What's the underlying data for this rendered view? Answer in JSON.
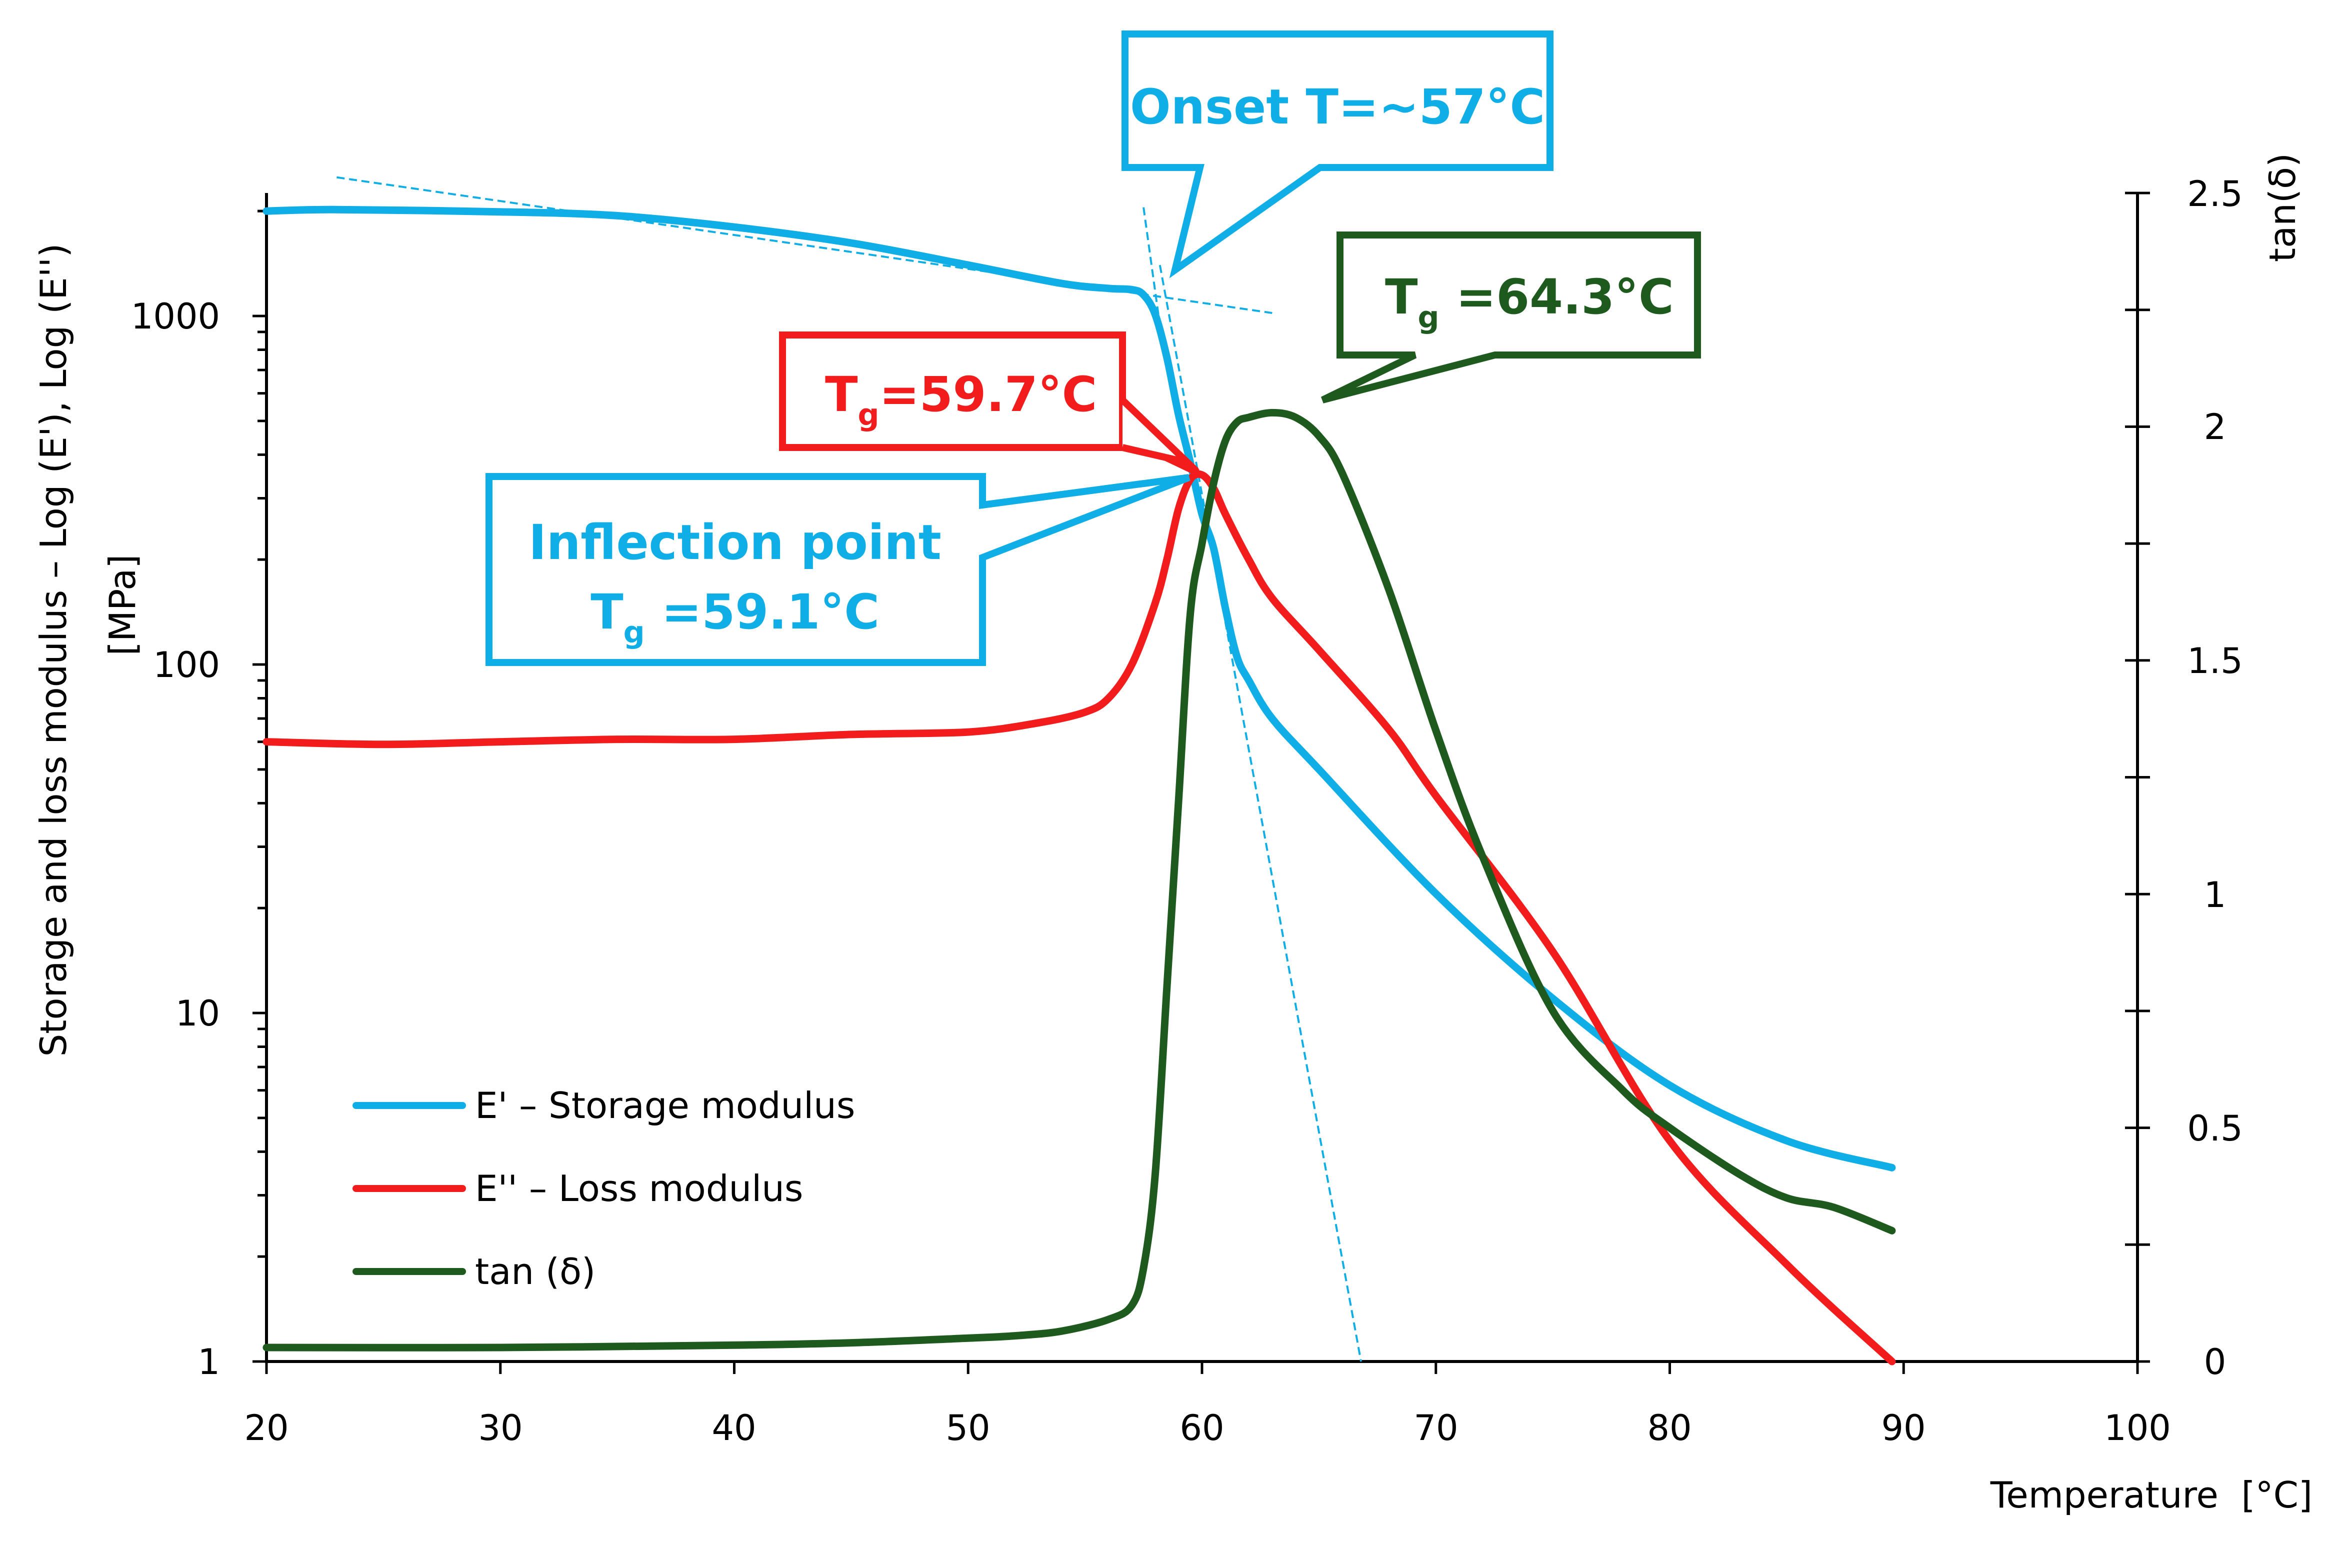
{
  "chart_data": {
    "type": "line",
    "title": "",
    "xlabel": "Temperature  [°C]",
    "ylabel_left_line1": "Storage and loss modulus – Log (E'), Log (E'')",
    "ylabel_left_line2": "[MPa]",
    "ylabel_right": "tan(δ)",
    "xlim": [
      20,
      100
    ],
    "ylim_left_log": [
      1,
      2500
    ],
    "ylim_right": [
      0,
      2.5
    ],
    "x_ticks": [
      "20",
      "30",
      "40",
      "50",
      "60",
      "70",
      "80",
      "90",
      "100"
    ],
    "y_left_ticks": [
      "1",
      "10",
      "100",
      "1000"
    ],
    "y_right_ticks": [
      "0",
      "0.5",
      "1",
      "1.5",
      "2",
      "2.5"
    ],
    "series": [
      {
        "name": "E' – Storage modulus",
        "axis": "left",
        "color": "#10aee6",
        "x": [
          20,
          23,
          30,
          35,
          40,
          45,
          50,
          54,
          56,
          57,
          57.5,
          58,
          58.5,
          59,
          59.5,
          60,
          60.5,
          61,
          61.5,
          62,
          63,
          65,
          70,
          75,
          80,
          85,
          89.5
        ],
        "y": [
          2000,
          2020,
          1990,
          1940,
          1800,
          1620,
          1400,
          1240,
          1200,
          1190,
          1150,
          1010,
          760,
          520,
          380,
          270,
          215,
          145,
          105,
          90,
          70,
          50,
          22,
          11,
          6.2,
          4.3,
          3.6
        ]
      },
      {
        "name": "E'' – Loss modulus",
        "axis": "left",
        "color": "#f21c1c",
        "x": [
          20,
          25,
          30,
          35,
          40,
          45,
          50,
          53,
          55,
          56,
          57,
          58,
          58.5,
          59,
          59.5,
          60,
          60.5,
          61,
          62,
          63,
          65,
          68,
          70,
          75,
          80,
          85,
          89.5
        ],
        "y": [
          60,
          59,
          60,
          61,
          61,
          63,
          64,
          68,
          73,
          80,
          100,
          150,
          200,
          280,
          340,
          350,
          320,
          270,
          200,
          155,
          110,
          65,
          42,
          15,
          4.3,
          1.9,
          1.0
        ]
      },
      {
        "name": "tan (δ)",
        "axis": "right",
        "color": "#1e5a1e",
        "x": [
          20,
          30,
          40,
          45,
          50,
          52,
          54,
          56,
          57,
          57.5,
          58,
          58.5,
          59,
          59.5,
          60,
          60.5,
          61,
          61.5,
          62,
          63,
          64,
          65,
          66,
          68,
          70,
          72,
          75,
          78,
          80,
          83,
          85,
          87,
          89.5
        ],
        "y": [
          0.03,
          0.03,
          0.035,
          0.04,
          0.05,
          0.055,
          0.065,
          0.09,
          0.12,
          0.2,
          0.4,
          0.8,
          1.2,
          1.6,
          1.75,
          1.88,
          1.97,
          2.01,
          2.02,
          2.03,
          2.02,
          1.98,
          1.9,
          1.65,
          1.35,
          1.08,
          0.75,
          0.58,
          0.5,
          0.4,
          0.35,
          0.33,
          0.28
        ]
      }
    ],
    "annotations": {
      "onset": "Onset T=~57°C",
      "tg_loss_main": "T",
      "tg_loss_sub": "g",
      "tg_loss_value": "=59.7°C",
      "tg_tan_main": "T",
      "tg_tan_sub": "g",
      "tg_tan_value": " =64.3°C",
      "inflection_line1": "Inflection point",
      "inflection_main": "T",
      "inflection_sub": "g",
      "inflection_value": " =59.1°C"
    },
    "tangent_lines": {
      "onset_pre_transition": {
        "x": [
          23,
          63
        ],
        "y_left": [
          2500,
          1020
        ]
      },
      "onset_short": {
        "x": [
          57.5,
          58.3
        ],
        "y_left": [
          2050,
          840
        ]
      },
      "inflection_tangent": {
        "x": [
          58.2,
          66.8
        ],
        "y_left": [
          1400,
          1
        ]
      }
    },
    "colors": {
      "storage": "#10aee6",
      "loss": "#f21c1c",
      "tan_delta": "#1e5a1e"
    }
  }
}
